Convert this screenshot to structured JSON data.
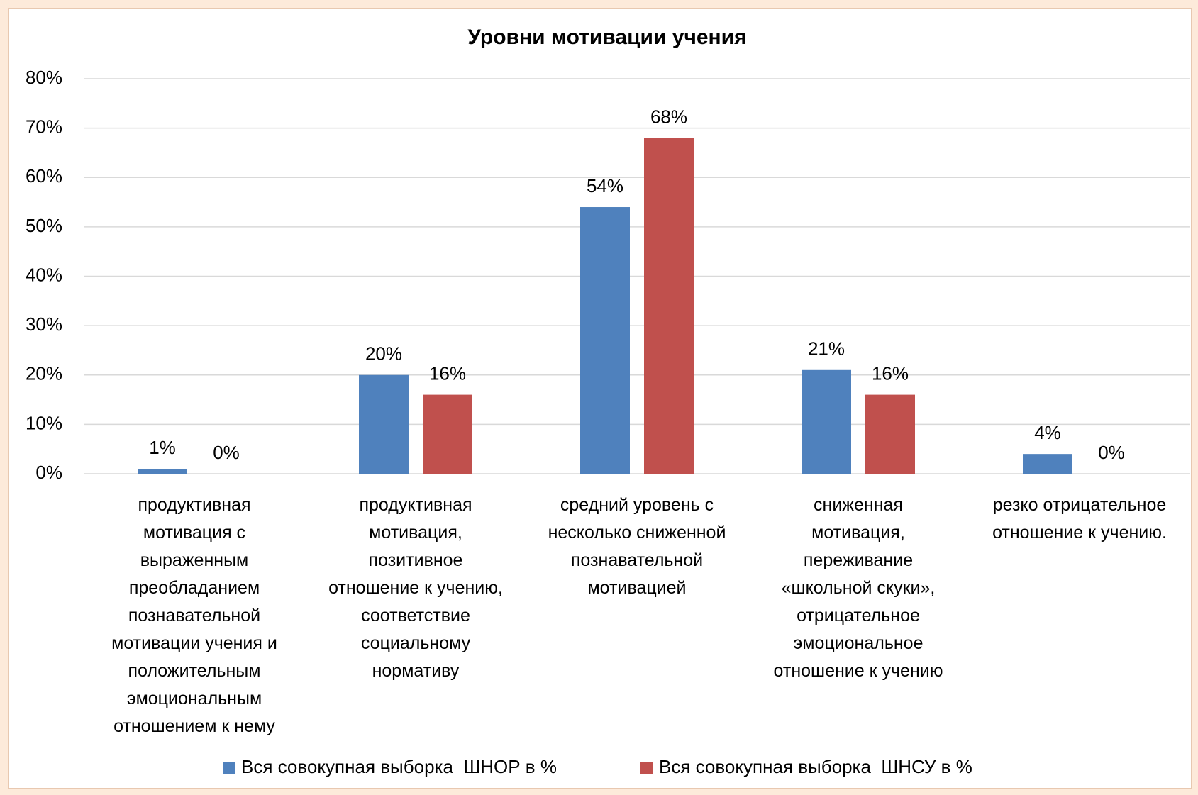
{
  "chart_data": {
    "type": "bar",
    "title": "Уровни мотивации учения",
    "categories": [
      "продуктивная\nмотивация с\nвыраженным\nпреобладанием\nпознавательной\nмотивации учения и\nположительным\nэмоциональным\nотношением к нему",
      "продуктивная\nмотивация,\nпозитивное\nотношение к учению,\nсоответствие\nсоциальному\nнормативу",
      "средний уровень с\nнесколько сниженной\nпознавательной\nмотивацией",
      "сниженная\nмотивация,\nпереживание\n«школьной скуки»,\nотрицательное\nэмоциональное\nотношение к учению",
      "резко отрицательное\nотношение к учению."
    ],
    "series": [
      {
        "name": "Вся совокупная выборка  ШНОР в %",
        "color": "#4f81bd",
        "values": [
          1,
          20,
          54,
          21,
          4
        ],
        "value_labels": [
          "1%",
          "20%",
          "54%",
          "21%",
          "4%"
        ]
      },
      {
        "name": "Вся совокупная выборка  ШНСУ в %",
        "color": "#c0504d",
        "values": [
          0,
          16,
          68,
          16,
          0
        ],
        "value_labels": [
          "0%",
          "16%",
          "68%",
          "16%",
          "0%"
        ]
      }
    ],
    "ylim": [
      0,
      80
    ],
    "yticks": [
      {
        "value": 0,
        "label": "0%"
      },
      {
        "value": 10,
        "label": "10%"
      },
      {
        "value": 20,
        "label": "20%"
      },
      {
        "value": 30,
        "label": "30%"
      },
      {
        "value": 40,
        "label": "40%"
      },
      {
        "value": 50,
        "label": "50%"
      },
      {
        "value": 60,
        "label": "60%"
      },
      {
        "value": 70,
        "label": "70%"
      },
      {
        "value": 80,
        "label": "80%"
      }
    ],
    "grid": true,
    "legend": "bottom"
  }
}
